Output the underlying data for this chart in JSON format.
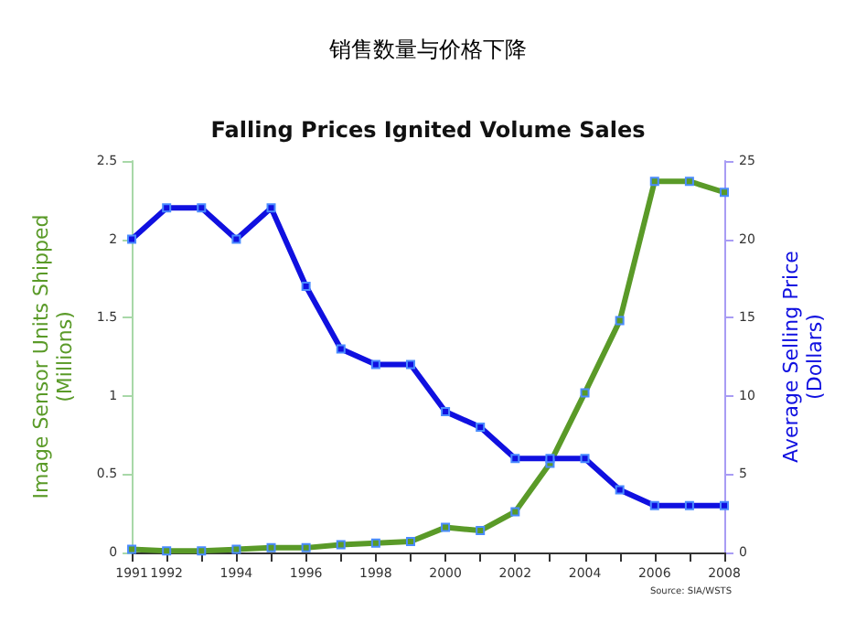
{
  "chart_data": {
    "type": "line",
    "title": "销售数量与价格下降",
    "subtitle": "Falling Prices Ignited Volume Sales",
    "x": [
      1991,
      1992,
      1993,
      1994,
      1995,
      1996,
      1997,
      1998,
      1999,
      2000,
      2001,
      2002,
      2003,
      2004,
      2005,
      2006,
      2007,
      2008
    ],
    "series": [
      {
        "color": "#5a9a28",
        "values": [
          0.02,
          0.01,
          0.01,
          0.02,
          0.03,
          0.03,
          0.05,
          0.06,
          0.07,
          0.16,
          0.14,
          0.26,
          0.57,
          1.02,
          1.48,
          2.37,
          2.37,
          2.3
        ]
      },
      {
        "color": "#1010e0",
        "axis": "y2",
        "values": [
          20,
          22,
          22,
          20,
          22,
          17,
          13,
          12,
          12,
          9,
          8,
          6,
          6,
          6,
          4,
          3,
          3,
          3
        ]
      }
    ],
    "xlim": [
      1991,
      2008
    ],
    "xticks": [
      1991,
      1992,
      {
        "value": 1993,
        "label": null
      },
      1994,
      {
        "value": 1995,
        "label": null
      },
      1996,
      {
        "value": 1997,
        "label": null
      },
      1998,
      {
        "value": 1999,
        "label": null
      },
      2000,
      {
        "value": 2001,
        "label": null
      },
      2002,
      {
        "value": 2003,
        "label": null
      },
      2004,
      {
        "value": 2005,
        "label": null
      },
      2006,
      {
        "value": 2007,
        "label": null
      },
      2008
    ],
    "ylabel": "Image Sensor Units Shipped\n(Millions)",
    "ylim": [
      0,
      2.5
    ],
    "yticks": [
      0,
      0.5,
      1.0,
      1.5,
      2.0,
      2.5
    ],
    "y2label": "Average Selling Price\n(Dollars)",
    "y2lim": [
      0,
      25
    ],
    "y2ticks": [
      0,
      5,
      10,
      15,
      20,
      25
    ],
    "annotations": [
      "Source: SIA/WSTS"
    ],
    "grid": false,
    "marker": "square",
    "line_style": "solid"
  }
}
